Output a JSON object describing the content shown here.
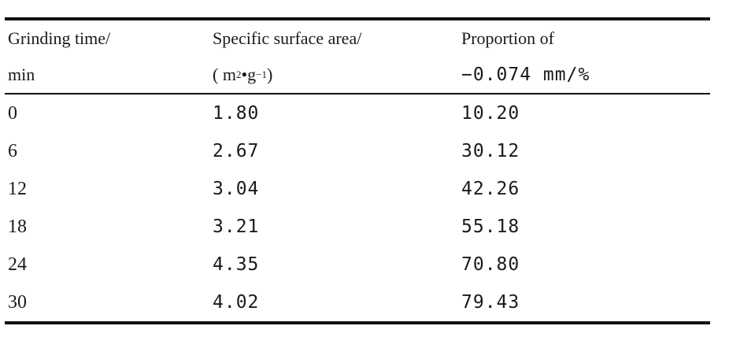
{
  "table": {
    "headers": {
      "col1_line1": "Grinding time/",
      "col1_line2": "min",
      "col2_line1": "Specific surface area/",
      "col2_line2_open": "( m",
      "col2_line2_sup1": "2",
      "col2_line2_mid": " •g",
      "col2_line2_sup2": " −1",
      "col2_line2_close": ")",
      "col3_line1": "Proportion of",
      "col3_line2": "−0.074 mm/%"
    },
    "rows": [
      {
        "time": "0",
        "area": "1.80",
        "proportion": "10.20"
      },
      {
        "time": "6",
        "area": "2.67",
        "proportion": "30.12"
      },
      {
        "time": "12",
        "area": "3.04",
        "proportion": "42.26"
      },
      {
        "time": "18",
        "area": "3.21",
        "proportion": "55.18"
      },
      {
        "time": "24",
        "area": "4.35",
        "proportion": "70.80"
      },
      {
        "time": "30",
        "area": "4.02",
        "proportion": "79.43"
      }
    ]
  }
}
